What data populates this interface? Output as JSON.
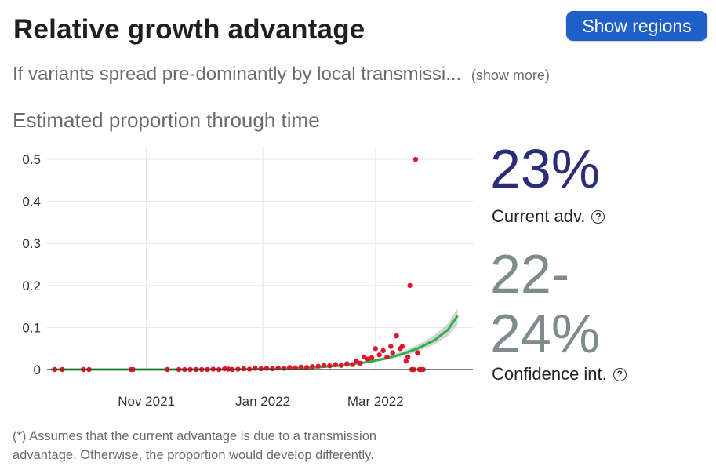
{
  "header": {
    "title": "Relative growth advantage",
    "show_regions_label": "Show regions"
  },
  "description": {
    "text": "If variants spread pre-dominantly by local transmissi...",
    "show_more_label": "(show more)"
  },
  "chart_section": {
    "subtitle": "Estimated proportion through time"
  },
  "stats": {
    "current_value": "23%",
    "current_label": "Current adv.",
    "ci_lower": "22-",
    "ci_upper": "24%",
    "ci_label": "Confidence int.",
    "help_glyph": "?"
  },
  "footnote": {
    "line1": "(*) Assumes that the current advantage is due to a transmission",
    "line2": "advantage. Otherwise, the proportion would develop differently."
  },
  "colors": {
    "accent_button": "#1f5fc9",
    "points": "#e0162b",
    "fit_line": "#2db34a",
    "ci_band": "#c8c8c8",
    "current_value": "#2a2e7a",
    "ci_value": "#7f8c8d"
  },
  "chart_data": {
    "type": "scatter",
    "x_type": "date",
    "x_range": [
      "2021-09-10",
      "2022-04-21"
    ],
    "ylim": [
      0,
      0.53
    ],
    "y_ticks": [
      0,
      0.1,
      0.2,
      0.3,
      0.4,
      0.5
    ],
    "y_tick_labels": [
      "0",
      "0.1",
      "0.2",
      "0.3",
      "0.4",
      "0.5"
    ],
    "x_ticks": [
      {
        "date": "2021-11-01",
        "label": "Nov 2021"
      },
      {
        "date": "2022-01-01",
        "label": "Jan 2022"
      },
      {
        "date": "2022-03-01",
        "label": "Mar 2022"
      }
    ],
    "grid": true,
    "series": [
      {
        "kind": "points",
        "x": [
          "2021-09-14",
          "2021-09-18",
          "2021-09-29",
          "2021-10-02",
          "2021-10-24",
          "2021-10-25",
          "2021-11-12",
          "2021-11-18",
          "2021-11-21",
          "2021-11-24",
          "2021-11-27",
          "2021-11-30",
          "2021-12-03",
          "2021-12-06",
          "2021-12-09",
          "2021-12-12",
          "2021-12-14",
          "2021-12-16",
          "2021-12-19",
          "2021-12-22",
          "2021-12-25",
          "2021-12-28",
          "2021-12-31",
          "2022-01-03",
          "2022-01-06",
          "2022-01-09",
          "2022-01-12",
          "2022-01-15",
          "2022-01-18",
          "2022-01-21",
          "2022-01-24",
          "2022-01-27",
          "2022-01-30",
          "2022-02-02",
          "2022-02-05",
          "2022-02-08",
          "2022-02-11",
          "2022-02-14",
          "2022-02-17",
          "2022-02-19",
          "2022-02-21",
          "2022-02-23",
          "2022-02-25",
          "2022-02-27",
          "2022-03-01",
          "2022-03-03",
          "2022-03-05",
          "2022-03-07",
          "2022-03-09",
          "2022-03-10",
          "2022-03-12",
          "2022-03-14",
          "2022-03-15",
          "2022-03-17",
          "2022-03-18",
          "2022-03-19",
          "2022-03-20",
          "2022-03-21",
          "2022-03-22",
          "2022-03-23",
          "2022-03-24",
          "2022-03-25",
          "2022-03-26"
        ],
        "y": [
          0,
          0,
          0,
          0,
          0,
          0,
          0,
          0,
          0,
          0,
          0,
          0,
          0,
          0.001,
          0,
          0.002,
          0.001,
          0,
          0.001,
          0.002,
          0.001,
          0.003,
          0.002,
          0.003,
          0.002,
          0.004,
          0.003,
          0.005,
          0.004,
          0.006,
          0.005,
          0.007,
          0.008,
          0.01,
          0.009,
          0.012,
          0.01,
          0.014,
          0.012,
          0.02,
          0.015,
          0.03,
          0.025,
          0.028,
          0.05,
          0.035,
          0.045,
          0.03,
          0.055,
          0.04,
          0.08,
          0.05,
          0.055,
          0.02,
          0.03,
          0.2,
          0,
          0,
          0.5,
          0.04,
          0,
          0,
          0
        ]
      },
      {
        "kind": "fit",
        "x": [
          "2021-09-12",
          "2021-10-15",
          "2021-11-15",
          "2021-12-15",
          "2022-01-05",
          "2022-01-25",
          "2022-02-10",
          "2022-02-25",
          "2022-03-07",
          "2022-03-15",
          "2022-03-23",
          "2022-04-01",
          "2022-04-08",
          "2022-04-13"
        ],
        "y": [
          0,
          0,
          0,
          0.0003,
          0.0012,
          0.004,
          0.009,
          0.018,
          0.027,
          0.037,
          0.05,
          0.07,
          0.095,
          0.128
        ],
        "y_lower": [
          0,
          0,
          0,
          0.0002,
          0.0009,
          0.003,
          0.007,
          0.015,
          0.023,
          0.032,
          0.043,
          0.06,
          0.08,
          0.108
        ],
        "y_upper": [
          0,
          0,
          0,
          0.0004,
          0.0015,
          0.005,
          0.011,
          0.021,
          0.031,
          0.043,
          0.058,
          0.082,
          0.11,
          0.145
        ]
      }
    ]
  }
}
